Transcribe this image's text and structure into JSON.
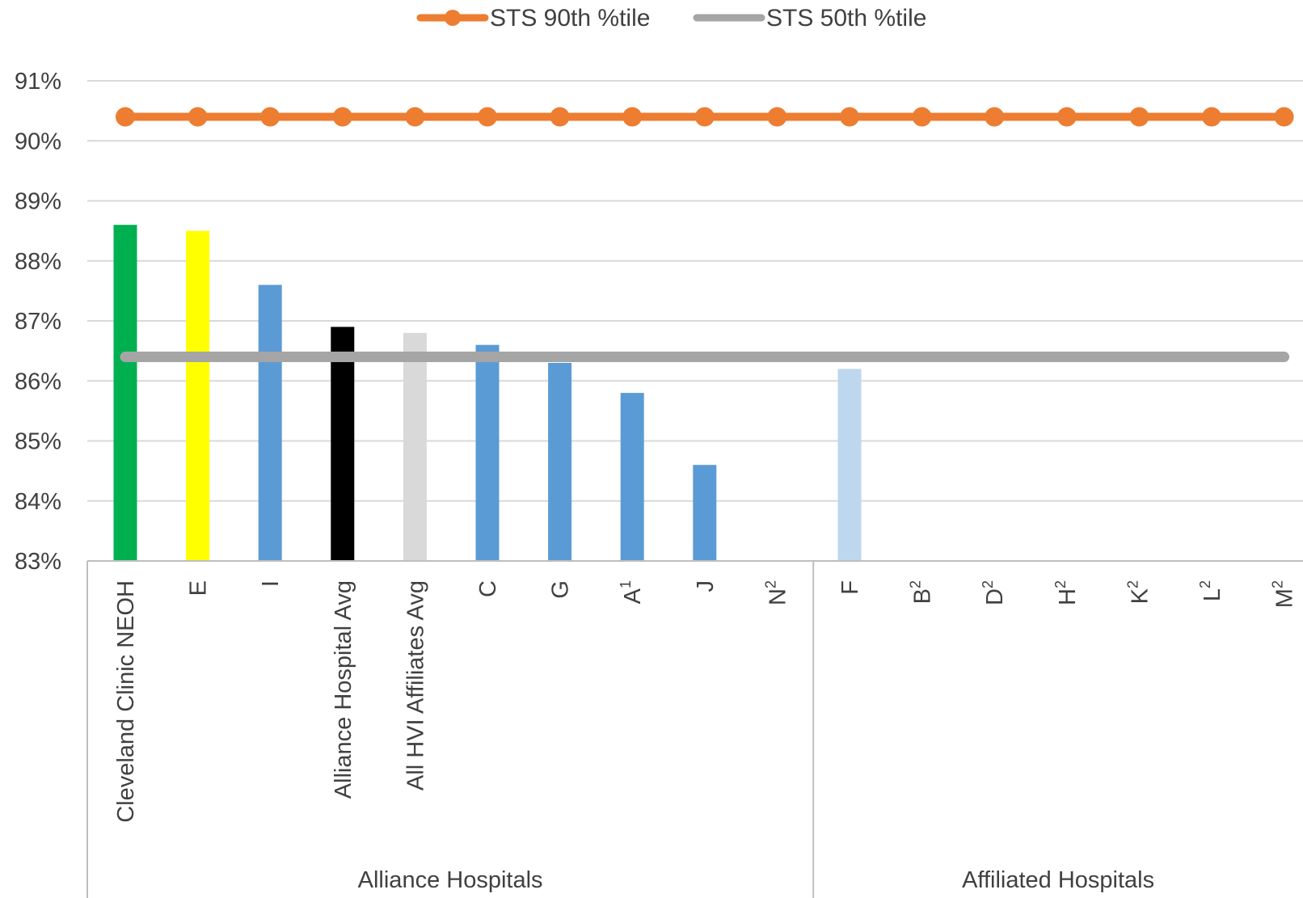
{
  "chart_data": {
    "type": "bar",
    "title": "",
    "xlabel": "",
    "ylabel": "",
    "ylim": [
      83,
      91
    ],
    "y_tick_labels": [
      "83%",
      "84%",
      "85%",
      "86%",
      "87%",
      "88%",
      "89%",
      "90%",
      "91%"
    ],
    "grid": true,
    "legend_position": "top-center",
    "categories": [
      {
        "label": "Cleveland Clinic NEOH",
        "sup": ""
      },
      {
        "label": "E",
        "sup": ""
      },
      {
        "label": "I",
        "sup": ""
      },
      {
        "label": "Alliance Hospital Avg",
        "sup": ""
      },
      {
        "label": "All HVI Affiliates Avg",
        "sup": ""
      },
      {
        "label": "C",
        "sup": ""
      },
      {
        "label": "G",
        "sup": ""
      },
      {
        "label": "A",
        "sup": "1"
      },
      {
        "label": "J",
        "sup": ""
      },
      {
        "label": "N",
        "sup": "2"
      },
      {
        "label": "F",
        "sup": ""
      },
      {
        "label": "B",
        "sup": "2"
      },
      {
        "label": "D",
        "sup": "2"
      },
      {
        "label": "H",
        "sup": "2"
      },
      {
        "label": "K",
        "sup": "2"
      },
      {
        "label": "L",
        "sup": "2"
      },
      {
        "label": "M",
        "sup": "2"
      }
    ],
    "values": [
      88.6,
      88.5,
      87.6,
      86.9,
      86.8,
      86.6,
      86.3,
      85.8,
      84.6,
      null,
      86.2,
      null,
      null,
      null,
      null,
      null,
      null
    ],
    "bar_colors": [
      "#00b050",
      "#ffff00",
      "#5b9bd5",
      "#000000",
      "#d9d9d9",
      "#5b9bd5",
      "#5b9bd5",
      "#5b9bd5",
      "#5b9bd5",
      "#5b9bd5",
      "#bdd7ee",
      "#bdd7ee",
      "#bdd7ee",
      "#bdd7ee",
      "#bdd7ee",
      "#bdd7ee",
      "#bdd7ee"
    ],
    "groups": [
      {
        "label": "Alliance Hospitals",
        "start": 0,
        "end": 9
      },
      {
        "label": "Affiliated Hospitals",
        "start": 10,
        "end": 16
      }
    ],
    "lines": [
      {
        "name": "STS 90th %tile",
        "value": 90.4,
        "color": "#ed7d31",
        "markers": true
      },
      {
        "name": "STS 50th %tile",
        "value": 86.4,
        "color": "#a5a5a5",
        "markers": false
      }
    ]
  }
}
